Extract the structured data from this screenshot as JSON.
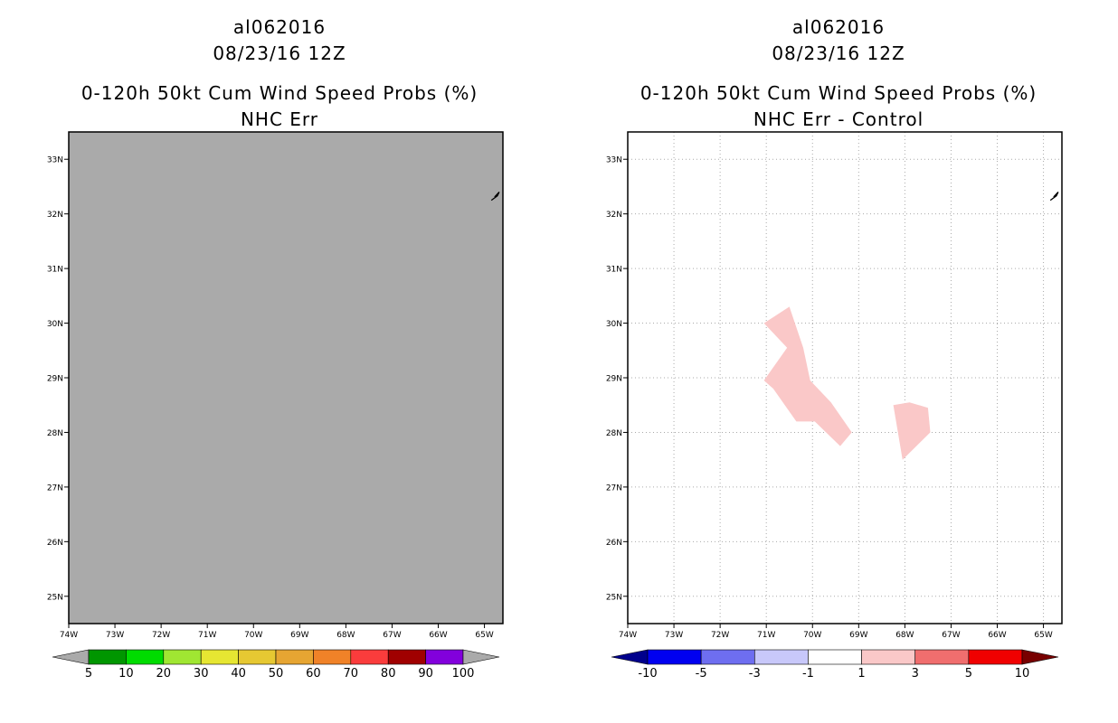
{
  "panels": [
    {
      "storm_id": "al062016",
      "datetime": "08/23/16 12Z",
      "title": "0-120h 50kt Cum Wind Speed Probs (%)",
      "subtitle": "NHC Err"
    },
    {
      "storm_id": "al062016",
      "datetime": "08/23/16 12Z",
      "title": "0-120h 50kt Cum Wind Speed Probs (%)",
      "subtitle": "NHC Err - Control"
    }
  ],
  "chart_data": [
    {
      "type": "heatmap",
      "title": "0-120h 50kt Cum Wind Speed Probs (%)",
      "subtitle": "NHC Err",
      "background_color": "#aaaaaa",
      "grid": false,
      "xlim": [
        -74,
        -64.6
      ],
      "ylim": [
        24.5,
        33.5
      ],
      "x_ticks": [
        -74,
        -73,
        -72,
        -71,
        -70,
        -69,
        -68,
        -67,
        -66,
        -65
      ],
      "x_tick_labels": [
        "74W",
        "73W",
        "72W",
        "71W",
        "70W",
        "69W",
        "68W",
        "67W",
        "66W",
        "65W"
      ],
      "y_ticks": [
        25,
        26,
        27,
        28,
        29,
        30,
        31,
        32,
        33
      ],
      "y_tick_labels": [
        "25N",
        "26N",
        "27N",
        "28N",
        "29N",
        "30N",
        "31N",
        "32N",
        "33N"
      ],
      "coastline": [
        [
          -64.85,
          32.25
        ],
        [
          -64.72,
          32.33
        ],
        [
          -64.68,
          32.4
        ],
        [
          -64.78,
          32.31
        ]
      ],
      "colorbar": {
        "labels": [
          "5",
          "10",
          "20",
          "30",
          "40",
          "50",
          "60",
          "70",
          "80",
          "90",
          "100"
        ],
        "colors": [
          "#aaaaaa",
          "#009600",
          "#00dc00",
          "#a0e632",
          "#e6e632",
          "#e6c832",
          "#e6a532",
          "#f08228",
          "#fa3c3c",
          "#a00000",
          "#8200dc",
          "#aaaaaa"
        ]
      },
      "regions": []
    },
    {
      "type": "heatmap",
      "title": "0-120h 50kt Cum Wind Speed Probs (%)",
      "subtitle": "NHC Err - Control",
      "background_color": "#ffffff",
      "grid": true,
      "xlim": [
        -74,
        -64.6
      ],
      "ylim": [
        24.5,
        33.5
      ],
      "x_ticks": [
        -74,
        -73,
        -72,
        -71,
        -70,
        -69,
        -68,
        -67,
        -66,
        -65
      ],
      "x_tick_labels": [
        "74W",
        "73W",
        "72W",
        "71W",
        "70W",
        "69W",
        "68W",
        "67W",
        "66W",
        "65W"
      ],
      "y_ticks": [
        25,
        26,
        27,
        28,
        29,
        30,
        31,
        32,
        33
      ],
      "y_tick_labels": [
        "25N",
        "26N",
        "27N",
        "28N",
        "29N",
        "30N",
        "31N",
        "32N",
        "33N"
      ],
      "coastline": [
        [
          -64.85,
          32.25
        ],
        [
          -64.72,
          32.33
        ],
        [
          -64.68,
          32.4
        ],
        [
          -64.78,
          32.31
        ]
      ],
      "colorbar": {
        "labels": [
          "-10",
          "-5",
          "-3",
          "-1",
          "1",
          "3",
          "5",
          "10"
        ],
        "colors": [
          "#00008c",
          "#0000f0",
          "#6e6ef0",
          "#c8c8fa",
          "#ffffff",
          "#fac8c8",
          "#f06e6e",
          "#f00000",
          "#780000"
        ]
      },
      "regions": [
        {
          "value_range": "1 to 3",
          "color": "#fac8c8",
          "points": [
            [
              -71.05,
              30.0
            ],
            [
              -70.5,
              30.3
            ],
            [
              -70.2,
              29.55
            ],
            [
              -70.05,
              28.95
            ],
            [
              -69.6,
              28.55
            ],
            [
              -69.15,
              28.0
            ],
            [
              -69.4,
              27.75
            ],
            [
              -69.95,
              28.2
            ],
            [
              -70.35,
              28.2
            ],
            [
              -70.85,
              28.8
            ],
            [
              -71.05,
              28.95
            ],
            [
              -70.55,
              29.55
            ]
          ]
        },
        {
          "value_range": "1 to 3",
          "color": "#fac8c8",
          "points": [
            [
              -68.25,
              28.5
            ],
            [
              -67.9,
              28.55
            ],
            [
              -67.5,
              28.45
            ],
            [
              -67.45,
              28.0
            ],
            [
              -68.05,
              27.5
            ],
            [
              -68.15,
              28.0
            ]
          ]
        }
      ]
    }
  ]
}
